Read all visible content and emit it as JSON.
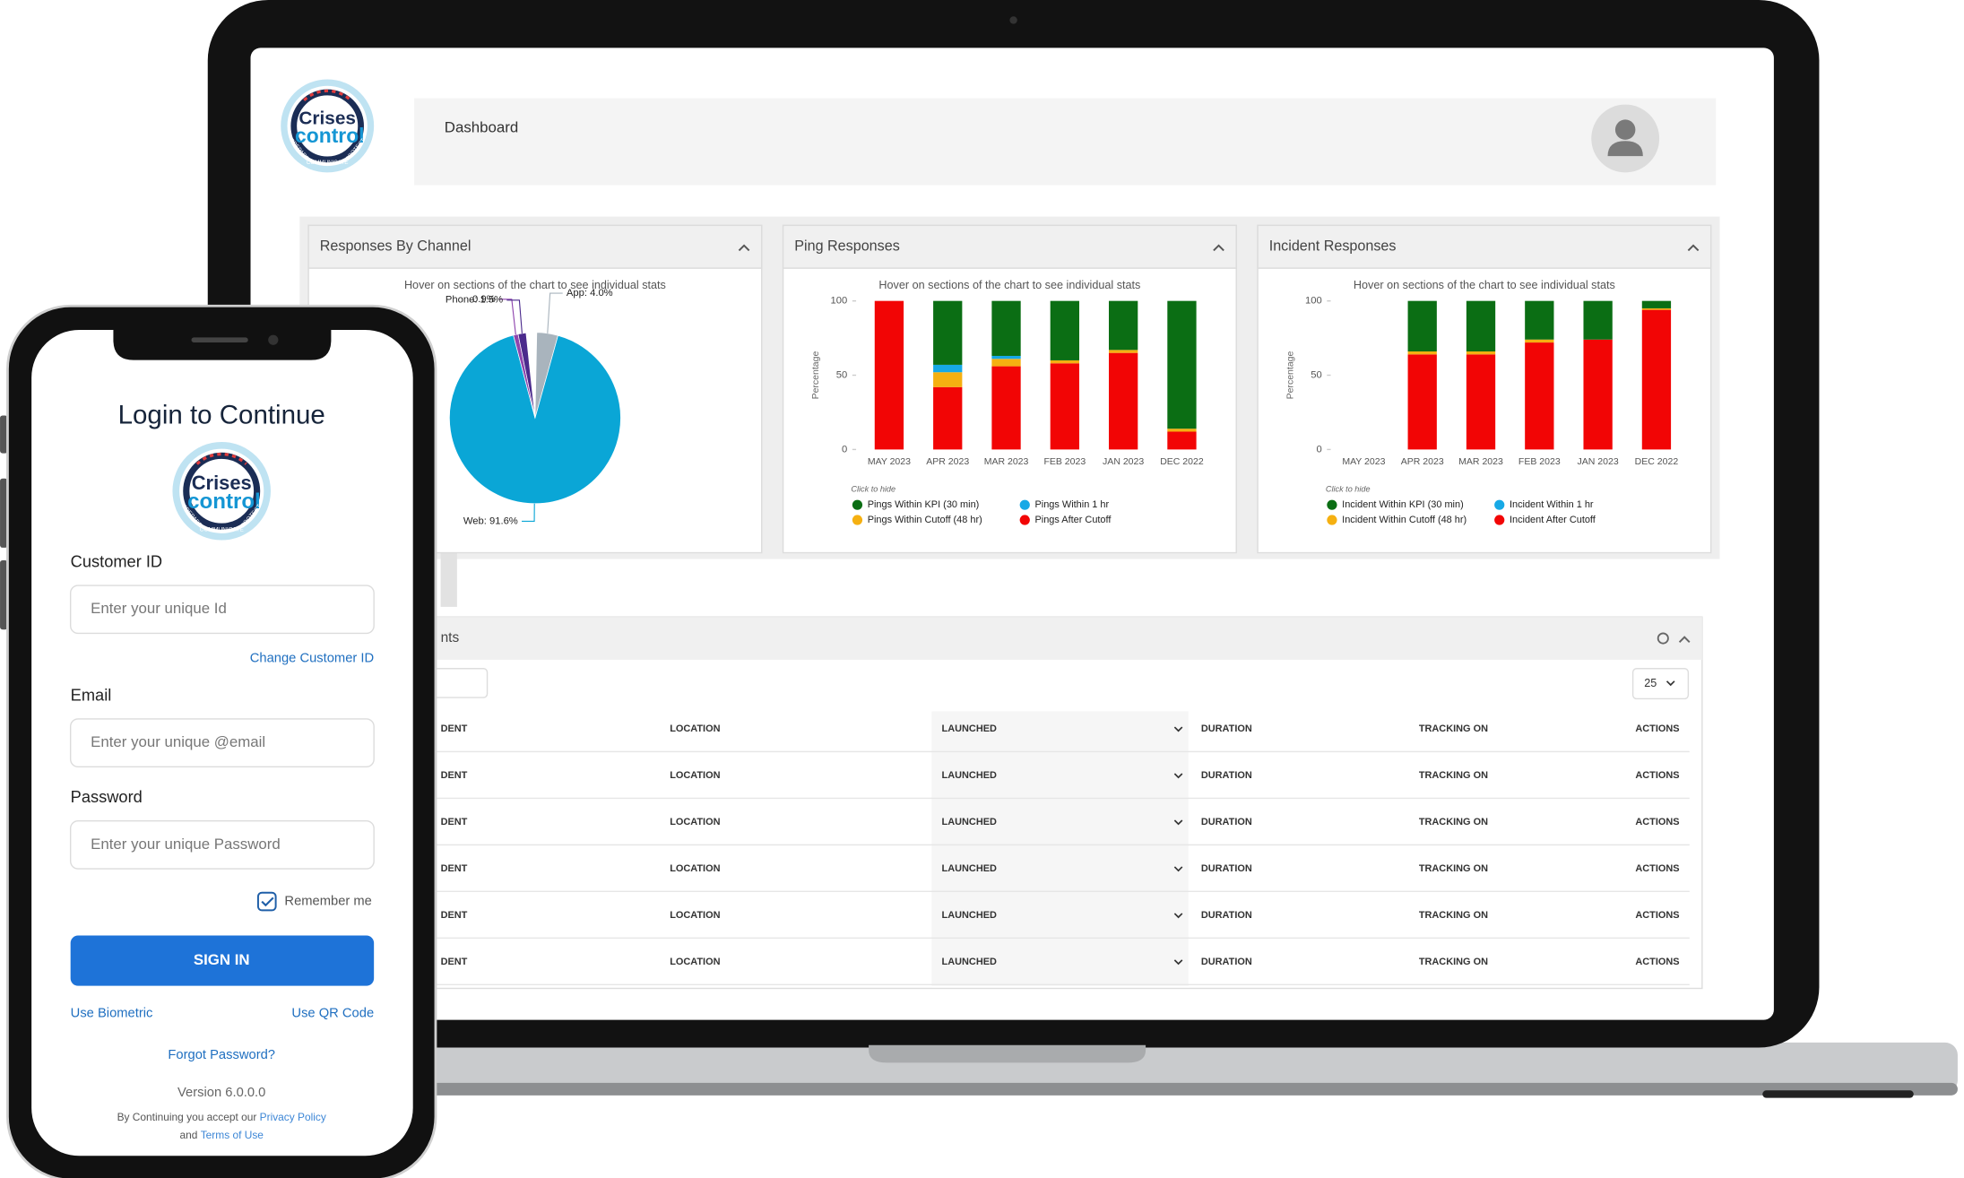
{
  "logo": {
    "line1": "Crises",
    "line2": "control",
    "ring": [
      "PREPARE",
      "COMMUNICATE",
      "PROTECT"
    ]
  },
  "dashboard": {
    "title": "Dashboard",
    "charts": [
      {
        "type": "pie",
        "title": "Responses By Channel",
        "subtitle": "Hover on sections of the chart to see individual stats",
        "values": [
          4.0,
          91.6,
          0.9,
          1.5
        ],
        "value_labels": [
          "App: 4.0%",
          "Web: 91.6%",
          "0.9%",
          "Phone: 1.5%"
        ],
        "colors": [
          "#a9b4bd",
          "#0aa6d6",
          "#8e44ad",
          "#4b2a8c"
        ]
      },
      {
        "type": "bar",
        "stacked": true,
        "title": "Ping Responses",
        "subtitle": "Hover on sections of the chart to see individual stats",
        "y_label": "Percentage",
        "legend_title": "Click to hide",
        "categories": [
          "MAY 2023",
          "APR 2023",
          "MAR 2023",
          "FEB 2023",
          "JAN 2023",
          "DEC 2022"
        ],
        "ylim": [
          0,
          100
        ],
        "yticks": [
          0,
          50,
          100
        ],
        "series": [
          {
            "name": "Pings Within KPI (30 min)",
            "color": "#0b6e14",
            "values": [
              0,
              43,
              37,
              40,
              33,
              86
            ]
          },
          {
            "name": "Pings Within 1 hr",
            "color": "#17a9e6",
            "values": [
              0,
              5,
              2,
              0,
              0,
              0
            ]
          },
          {
            "name": "Pings Within Cutoff (48 hr)",
            "color": "#f5b011",
            "values": [
              0,
              10,
              5,
              2,
              2,
              2
            ]
          },
          {
            "name": "Pings After Cutoff",
            "color": "#f20505",
            "values": [
              100,
              42,
              56,
              58,
              65,
              12
            ]
          }
        ]
      },
      {
        "type": "bar",
        "stacked": true,
        "title": "Incident Responses",
        "subtitle": "Hover on sections of the chart to see individual stats",
        "y_label": "Percentage",
        "legend_title": "Click to hide",
        "categories": [
          "MAY 2023",
          "APR 2023",
          "MAR 2023",
          "FEB 2023",
          "JAN 2023",
          "DEC 2022"
        ],
        "ylim": [
          0,
          100
        ],
        "yticks": [
          0,
          50,
          100
        ],
        "series": [
          {
            "name": "Incident Within KPI (30 min)",
            "color": "#0b6e14",
            "values": [
              0,
              34,
              34,
              26,
              26,
              5
            ]
          },
          {
            "name": "Incident Within 1 hr",
            "color": "#17a9e6",
            "values": [
              0,
              0,
              0,
              0,
              0,
              0
            ]
          },
          {
            "name": "Incident Within Cutoff (48 hr)",
            "color": "#f5b011",
            "values": [
              0,
              2,
              2,
              2,
              0,
              1
            ]
          },
          {
            "name": "Incident After Cutoff",
            "color": "#f20505",
            "values": [
              0,
              64,
              64,
              72,
              74,
              94
            ]
          }
        ]
      }
    ],
    "table": {
      "title": "nts",
      "page_size": "25",
      "rows": [
        [
          "DENT",
          "LOCATION",
          "LAUNCHED",
          "DURATION",
          "TRACKING ON",
          "ACTIONS"
        ],
        [
          "DENT",
          "LOCATION",
          "LAUNCHED",
          "DURATION",
          "TRACKING ON",
          "ACTIONS"
        ],
        [
          "DENT",
          "LOCATION",
          "LAUNCHED",
          "DURATION",
          "TRACKING ON",
          "ACTIONS"
        ],
        [
          "DENT",
          "LOCATION",
          "LAUNCHED",
          "DURATION",
          "TRACKING ON",
          "ACTIONS"
        ],
        [
          "DENT",
          "LOCATION",
          "LAUNCHED",
          "DURATION",
          "TRACKING ON",
          "ACTIONS"
        ],
        [
          "DENT",
          "LOCATION",
          "LAUNCHED",
          "DURATION",
          "TRACKING ON",
          "ACTIONS"
        ]
      ]
    }
  },
  "login": {
    "title": "Login to Continue",
    "customer_id": {
      "label": "Customer ID",
      "placeholder": "Enter your unique Id",
      "link": "Change Customer ID"
    },
    "email": {
      "label": "Email",
      "placeholder": "Enter your unique @email"
    },
    "password": {
      "label": "Password",
      "placeholder": "Enter your unique Password"
    },
    "remember": "Remember me",
    "sign_in": "SIGN IN",
    "biometric": "Use Biometric",
    "qr_code": "Use QR Code",
    "forgot": "Forgot Password?",
    "version": "Version 6.0.0.0",
    "terms": {
      "prefix": "By Continuing you accept our ",
      "privacy": "Privacy Policy",
      "and": "and ",
      "terms": "Terms of Use"
    }
  }
}
